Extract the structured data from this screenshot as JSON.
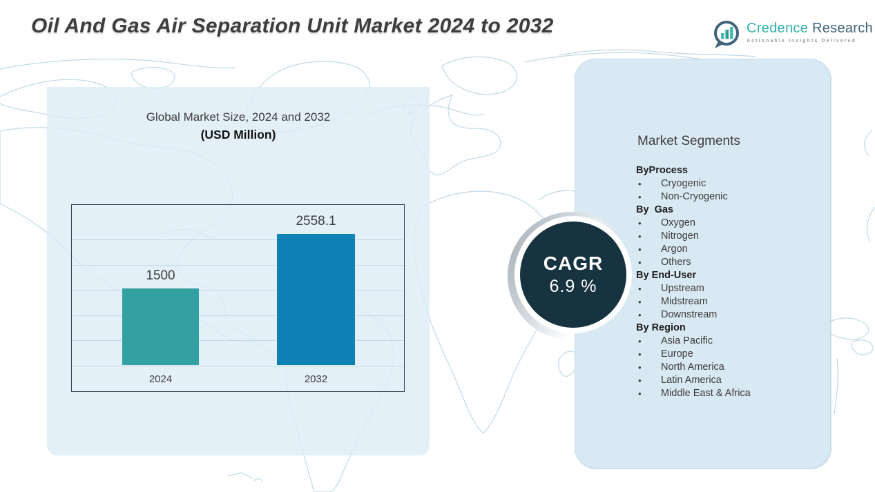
{
  "title": "Oil And Gas Air Separation Unit Market 2024 to 2032",
  "logo": {
    "brand_primary": "Credence",
    "brand_secondary": "Research",
    "tagline": "Actionable Insights Delivered",
    "colors": {
      "primary": "#2fb0ab",
      "secondary": "#40637a"
    }
  },
  "chart_data": {
    "type": "bar",
    "title": "Global Market Size, 2024 and 2032",
    "subtitle": "(USD Million)",
    "categories": [
      "2024",
      "2032"
    ],
    "values": [
      1500,
      2558.1
    ],
    "value_labels": [
      "1500",
      "2558.1"
    ],
    "bar_colors": [
      "#33a1a1",
      "#0e81b5"
    ],
    "ylabel": "USD Million",
    "ylim": [
      0,
      3000
    ],
    "grid": true,
    "legend": false
  },
  "cagr": {
    "label": "CAGR",
    "value": "6.9 %",
    "circle_color": "#16333f",
    "text_color": "#ffffff"
  },
  "segments": {
    "title": "Market Segments",
    "groups": [
      {
        "label": "ByProcess",
        "items": [
          "Cryogenic",
          "Non-Cryogenic"
        ]
      },
      {
        "label": "By  Gas",
        "items": [
          "Oxygen",
          "Nitrogen",
          "Argon",
          "Others"
        ]
      },
      {
        "label": "By End-User",
        "items": [
          "Upstream",
          "Midstream",
          "Downstream"
        ]
      },
      {
        "label": "By Region",
        "items": [
          "Asia Pacific",
          "Europe",
          "North America",
          "Latin America",
          "Middle East & Africa"
        ]
      }
    ]
  }
}
